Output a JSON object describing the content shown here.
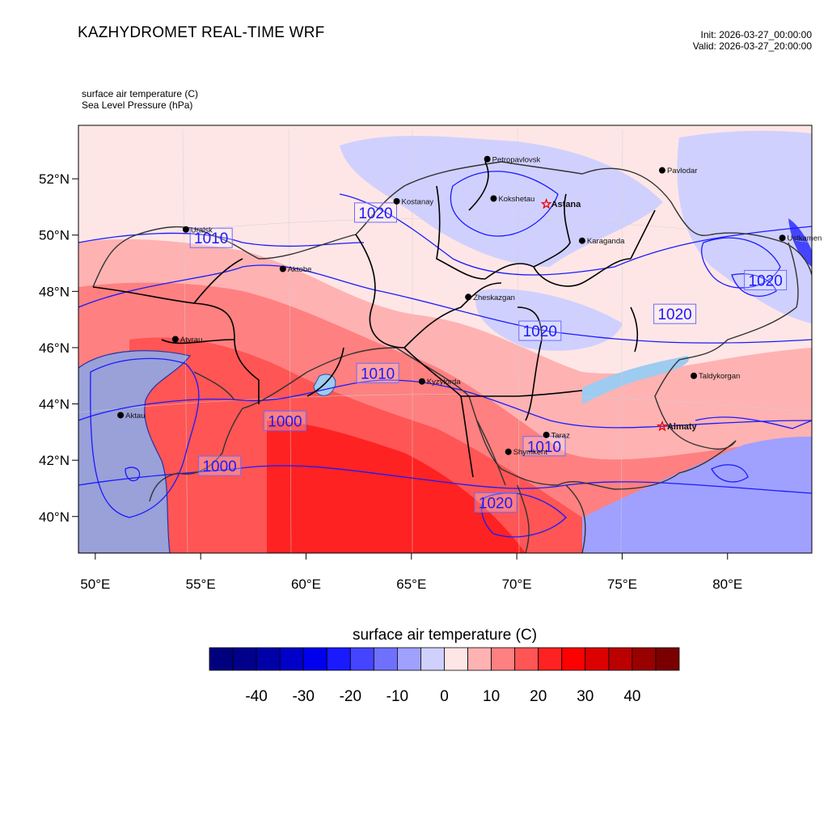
{
  "header": {
    "title": "KAZHYDROMET REAL-TIME WRF",
    "init": "Init: 2026-03-27_00:00:00",
    "valid": "Valid: 2026-03-27_20:00:00"
  },
  "fields": {
    "shaded": "surface air temperature   (C)",
    "contour": "Sea Level Pressure   (hPa)"
  },
  "map": {
    "lon_range": [
      49.2,
      84.0
    ],
    "lat_range": [
      38.7,
      53.9
    ],
    "lat_ticks": [
      {
        "value": 52,
        "label": "52°N"
      },
      {
        "value": 50,
        "label": "50°N"
      },
      {
        "value": 48,
        "label": "48°N"
      },
      {
        "value": 46,
        "label": "46°N"
      },
      {
        "value": 44,
        "label": "44°N"
      },
      {
        "value": 42,
        "label": "42°N"
      },
      {
        "value": 40,
        "label": "40°N"
      }
    ],
    "lon_ticks": [
      {
        "value": 50,
        "label": "50°E"
      },
      {
        "value": 55,
        "label": "55°E"
      },
      {
        "value": 60,
        "label": "60°E"
      },
      {
        "value": 65,
        "label": "65°E"
      },
      {
        "value": 70,
        "label": "70°E"
      },
      {
        "value": 75,
        "label": "75°E"
      },
      {
        "value": 80,
        "label": "80°E"
      }
    ],
    "cities": [
      {
        "name": "Petropavlovsk",
        "lon": 68.6,
        "lat": 52.7,
        "capital": false,
        "bold": false
      },
      {
        "name": "Kostanay",
        "lon": 64.3,
        "lat": 51.2,
        "capital": false,
        "bold": false
      },
      {
        "name": "Kokshetau",
        "lon": 68.9,
        "lat": 51.3,
        "capital": false,
        "bold": false
      },
      {
        "name": "Pavlodar",
        "lon": 76.9,
        "lat": 52.3,
        "capital": false,
        "bold": false
      },
      {
        "name": "Uralsk",
        "lon": 54.3,
        "lat": 50.2,
        "capital": false,
        "bold": false
      },
      {
        "name": "Astana",
        "lon": 71.4,
        "lat": 51.1,
        "capital": true,
        "bold": true
      },
      {
        "name": "Aktobe",
        "lon": 58.9,
        "lat": 48.8,
        "capital": false,
        "bold": false
      },
      {
        "name": "Ustkamen",
        "lon": 82.6,
        "lat": 49.9,
        "capital": false,
        "bold": false
      },
      {
        "name": "Karaganda",
        "lon": 73.1,
        "lat": 49.8,
        "capital": false,
        "bold": false
      },
      {
        "name": "Atyrau",
        "lon": 53.8,
        "lat": 46.3,
        "capital": false,
        "bold": false
      },
      {
        "name": "Zheskazgan",
        "lon": 67.7,
        "lat": 47.8,
        "capital": false,
        "bold": false
      },
      {
        "name": "Taldykorgan",
        "lon": 78.4,
        "lat": 45.0,
        "capital": false,
        "bold": false
      },
      {
        "name": "Aktau",
        "lon": 51.2,
        "lat": 43.6,
        "capital": false,
        "bold": false
      },
      {
        "name": "Kyzylorda",
        "lon": 65.5,
        "lat": 44.8,
        "capital": false,
        "bold": false
      },
      {
        "name": "Almaty",
        "lon": 76.9,
        "lat": 43.2,
        "capital": true,
        "bold": true
      },
      {
        "name": "Taraz",
        "lon": 71.4,
        "lat": 42.9,
        "capital": false,
        "bold": false
      },
      {
        "name": "Shymkent",
        "lon": 69.6,
        "lat": 42.3,
        "capital": false,
        "bold": false
      }
    ],
    "isobar_labels": [
      {
        "text": "1020",
        "lon": 63.3,
        "lat": 50.8
      },
      {
        "text": "1010",
        "lon": 55.5,
        "lat": 49.9
      },
      {
        "text": "1020",
        "lon": 81.8,
        "lat": 48.4
      },
      {
        "text": "1020",
        "lon": 77.5,
        "lat": 47.2
      },
      {
        "text": "1020",
        "lon": 71.1,
        "lat": 46.6
      },
      {
        "text": "1010",
        "lon": 63.4,
        "lat": 45.1
      },
      {
        "text": "1000",
        "lon": 59.0,
        "lat": 43.4
      },
      {
        "text": "1000",
        "lon": 55.9,
        "lat": 41.8
      },
      {
        "text": "1010",
        "lon": 71.3,
        "lat": 42.5
      },
      {
        "text": "1020",
        "lon": 69.0,
        "lat": 40.5
      }
    ]
  },
  "colorbar": {
    "title": "surface air temperature  (C)",
    "colors": [
      "#00007f",
      "#00008b",
      "#0000a8",
      "#0000c9",
      "#0000ee",
      "#1a1aff",
      "#4545ff",
      "#7070ff",
      "#a0a0ff",
      "#d0d0ff",
      "#ffe6e6",
      "#ffb2b2",
      "#ff8080",
      "#ff5555",
      "#ff2222",
      "#ff0000",
      "#dd0000",
      "#bb0000",
      "#990000",
      "#7a0000"
    ],
    "tick_labels": [
      "-40",
      "-30",
      "-20",
      "-10",
      "0",
      "10",
      "20",
      "30",
      "40"
    ]
  }
}
